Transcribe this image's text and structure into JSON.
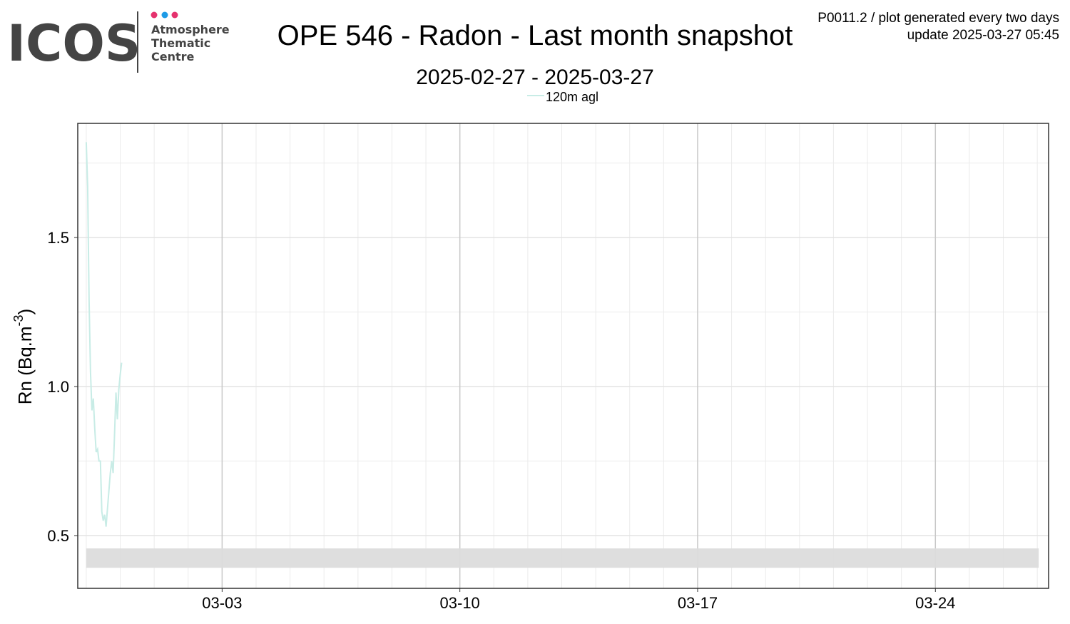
{
  "logo": {
    "name": "ICOS",
    "lines": [
      "Atmosphere",
      "Thematic",
      "Centre"
    ]
  },
  "info": [
    "P0011.2 / plot generated every two days",
    "update  2025-03-27 05:45"
  ],
  "chart_data": {
    "type": "line",
    "title": "OPE 546 - Radon - Last month snapshot",
    "subtitle": "2025-02-27 - 2025-03-27",
    "y_label": {
      "text": "Rn (Bq.m",
      "superscript": "-3",
      "suffix": ")"
    },
    "x": [
      "02-27 00:00",
      "02-27 01:00",
      "02-27 02:00",
      "02-27 03:00",
      "02-27 04:00",
      "02-27 05:00",
      "02-27 06:00",
      "02-27 07:00",
      "02-27 08:00",
      "02-27 09:00",
      "02-27 10:00",
      "02-27 11:00",
      "02-27 12:00",
      "02-27 13:00",
      "02-27 14:00",
      "02-27 15:00",
      "02-27 16:00",
      "02-27 17:00",
      "02-27 18:00",
      "02-27 19:00",
      "02-27 20:00",
      "02-27 21:00",
      "02-27 22:00",
      "02-27 23:00",
      "02-28 00:00",
      "02-28 01:00"
    ],
    "series": [
      {
        "name": "120m agl",
        "color": "#c8ece6",
        "values": [
          1.82,
          1.67,
          1.29,
          1.05,
          0.92,
          0.96,
          0.86,
          0.78,
          0.79,
          0.75,
          0.75,
          0.58,
          0.55,
          0.57,
          0.53,
          0.59,
          0.65,
          0.71,
          0.75,
          0.71,
          0.84,
          0.98,
          0.89,
          0.99,
          1.04,
          1.08
        ]
      }
    ],
    "shaded_region": {
      "x": [
        "02-27 00:00",
        "03-27 01:00"
      ],
      "y": [
        0.392,
        0.457
      ],
      "color": "#dcdcdc"
    },
    "xlim": [
      "02-26 18:00",
      "03-27 08:00"
    ],
    "xticks": [
      {
        "value": "03-03 00:00",
        "label": "03-03"
      },
      {
        "value": "03-10 00:00",
        "label": "03-10"
      },
      {
        "value": "03-17 00:00",
        "label": "03-17"
      },
      {
        "value": "03-24 00:00",
        "label": "03-24"
      }
    ],
    "x_minor_ticks": [
      "02-27 00:00",
      "02-28 00:00",
      "03-01 00:00",
      "03-02 00:00",
      "03-04 00:00",
      "03-05 00:00",
      "03-06 00:00",
      "03-07 00:00",
      "03-08 00:00",
      "03-09 00:00",
      "03-11 00:00",
      "03-12 00:00",
      "03-13 00:00",
      "03-14 00:00",
      "03-15 00:00",
      "03-16 00:00",
      "03-18 00:00",
      "03-19 00:00",
      "03-20 00:00",
      "03-21 00:00",
      "03-22 00:00",
      "03-23 00:00",
      "03-25 00:00",
      "03-26 00:00",
      "03-27 00:00"
    ],
    "ylim": [
      0.323,
      1.883
    ],
    "yticks": [
      0.5,
      {
        "value": 1,
        "label": "1.0"
      },
      1.5
    ],
    "y_minor_ticks": [
      0.75,
      1.25,
      1.75
    ],
    "grid": true
  }
}
